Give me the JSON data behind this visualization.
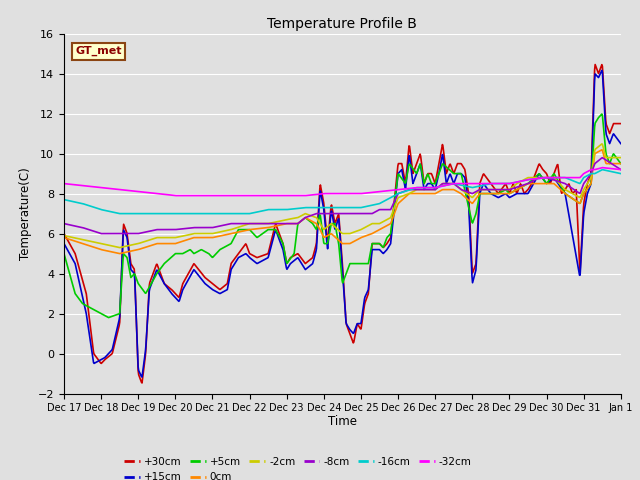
{
  "title": "Temperature Profile B",
  "xlabel": "Time",
  "ylabel": "Temperature(C)",
  "ylim": [
    -2,
    16
  ],
  "yticks": [
    -2,
    0,
    2,
    4,
    6,
    8,
    10,
    12,
    14,
    16
  ],
  "background_color": "#e0e0e0",
  "plot_bg_color": "#e0e0e0",
  "grid_color": "#ffffff",
  "annotation_text": "GT_met",
  "annotation_bg": "#ffffcc",
  "annotation_border": "#8B4513",
  "series": [
    {
      "label": "+30cm",
      "color": "#cc0000",
      "lw": 1.2
    },
    {
      "label": "+15cm",
      "color": "#0000cc",
      "lw": 1.2
    },
    {
      "label": "+5cm",
      "color": "#00cc00",
      "lw": 1.2
    },
    {
      "label": "0cm",
      "color": "#ff8800",
      "lw": 1.2
    },
    {
      "label": "-2cm",
      "color": "#cccc00",
      "lw": 1.2
    },
    {
      "label": "-8cm",
      "color": "#9900cc",
      "lw": 1.2
    },
    {
      "label": "-16cm",
      "color": "#00cccc",
      "lw": 1.2
    },
    {
      "label": "-32cm",
      "color": "#ff00ff",
      "lw": 1.2
    }
  ],
  "xtick_labels": [
    "Dec 17",
    "Dec 18",
    "Dec 19",
    "Dec 20",
    "Dec 21",
    "Dec 22",
    "Dec 23",
    "Dec 24",
    "Dec 25",
    "Dec 26",
    "Dec 27",
    "Dec 28",
    "Dec 29",
    "Dec 30",
    "Dec 31",
    "Jan 1"
  ],
  "num_days": 16
}
